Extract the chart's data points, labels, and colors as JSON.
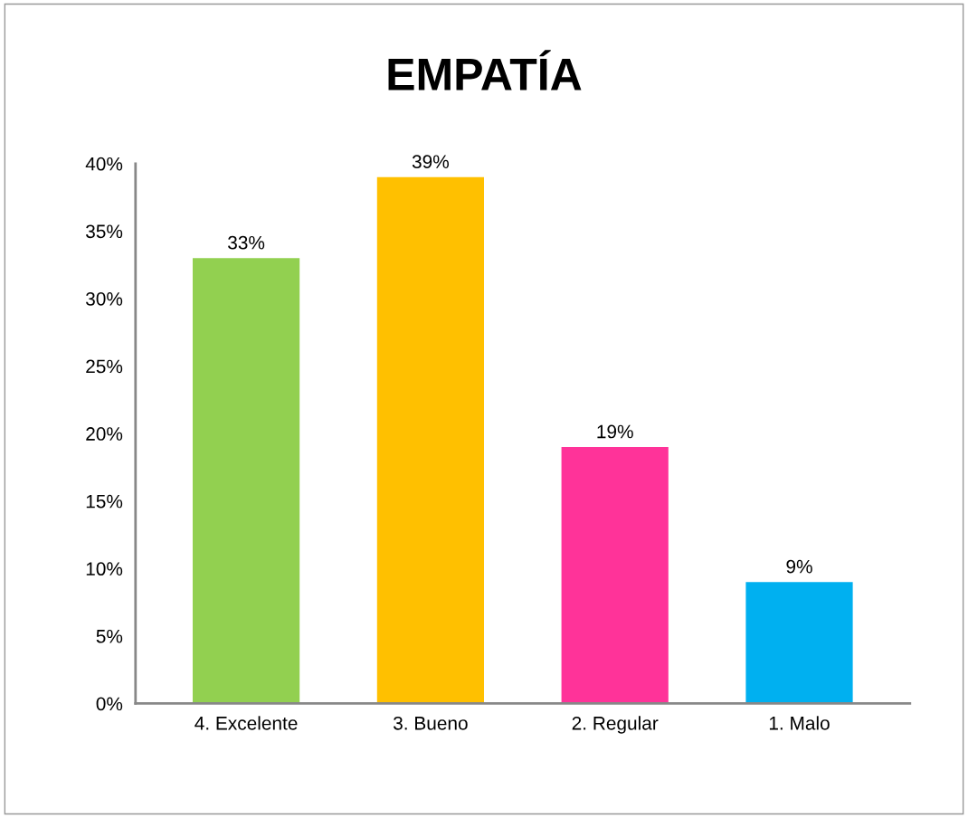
{
  "chart_data": {
    "type": "bar",
    "title": "EMPATÍA",
    "categories": [
      "4. Excelente",
      "3. Bueno",
      "2. Regular",
      "1. Malo"
    ],
    "values": [
      33,
      39,
      19,
      9
    ],
    "colors": [
      "#92d050",
      "#ffc000",
      "#ff3399",
      "#00b0f0"
    ],
    "ylim": [
      0,
      40
    ],
    "yticks": [
      {
        "value": 0,
        "label": "0%"
      },
      {
        "value": 5,
        "label": "5%"
      },
      {
        "value": 10,
        "label": "10%"
      },
      {
        "value": 15,
        "label": "15%"
      },
      {
        "value": 20,
        "label": "20%"
      },
      {
        "value": 25,
        "label": "25%"
      },
      {
        "value": 30,
        "label": "30%"
      },
      {
        "value": 35,
        "label": "35%"
      },
      {
        "value": 40,
        "label": "40%"
      }
    ],
    "value_labels": [
      "33%",
      "39%",
      "19%",
      "9%"
    ],
    "grid": false
  }
}
